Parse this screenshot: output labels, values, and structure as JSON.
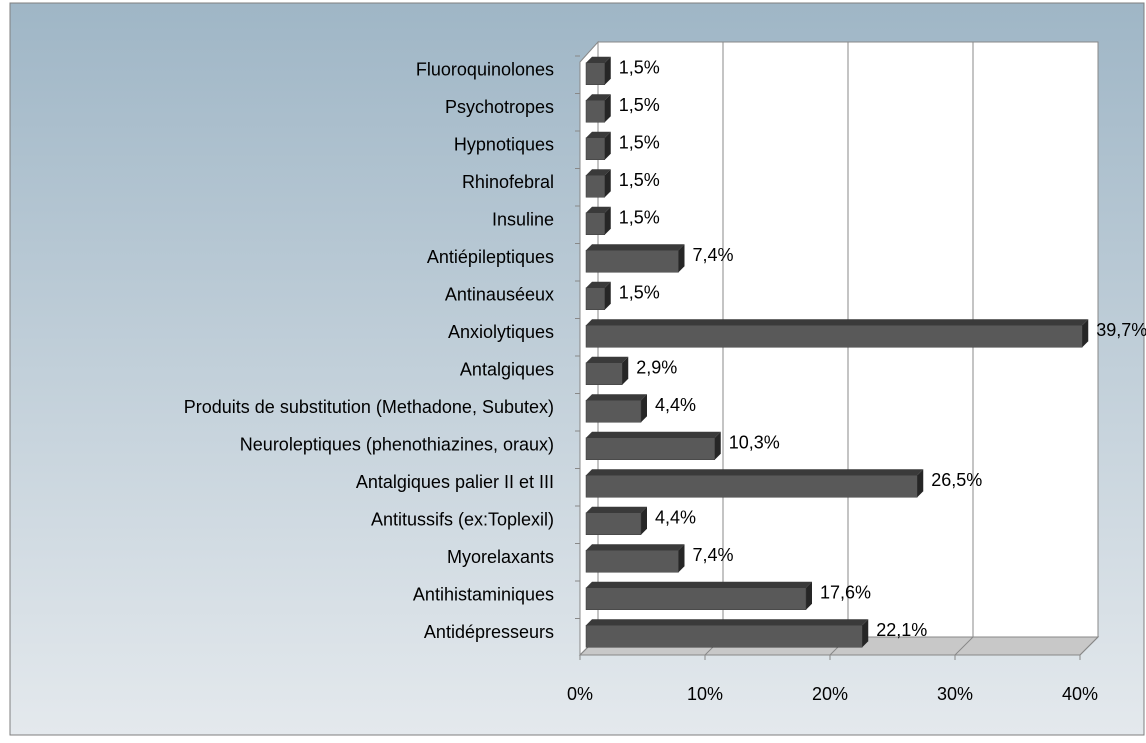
{
  "chart_data": {
    "type": "bar",
    "orientation": "horizontal",
    "categories": [
      "Fluoroquinolones",
      "Psychotropes",
      "Hypnotiques",
      "Rhinofebral",
      "Insuline",
      "Antiépileptiques",
      "Antinauséeux",
      "Anxiolytiques",
      "Antalgiques",
      "Produits de substitution (Methadone, Subutex)",
      "Neuroleptiques (phenothiazines, oraux)",
      "Antalgiques palier II et III",
      "Antitussifs (ex:Toplexil)",
      "Myorelaxants",
      "Antihistaminiques",
      "Antidépresseurs"
    ],
    "values": [
      1.5,
      1.5,
      1.5,
      1.5,
      1.5,
      7.4,
      1.5,
      39.7,
      2.9,
      4.4,
      10.3,
      26.5,
      4.4,
      7.4,
      17.6,
      22.1
    ],
    "value_labels": [
      "1,5%",
      "1,5%",
      "1,5%",
      "1,5%",
      "1,5%",
      "7,4%",
      "1,5%",
      "39,7%",
      "2,9%",
      "4,4%",
      "10,3%",
      "26,5%",
      "4,4%",
      "7,4%",
      "17,6%",
      "22,1%"
    ],
    "color": "#595959",
    "xlim": [
      0,
      40
    ],
    "xticks": [
      {
        "value": 0,
        "label": "0%"
      },
      {
        "value": 10,
        "label": "10%"
      },
      {
        "value": 20,
        "label": "20%"
      },
      {
        "value": 30,
        "label": "30%"
      },
      {
        "value": 40,
        "label": "40%"
      }
    ],
    "grid": true
  }
}
